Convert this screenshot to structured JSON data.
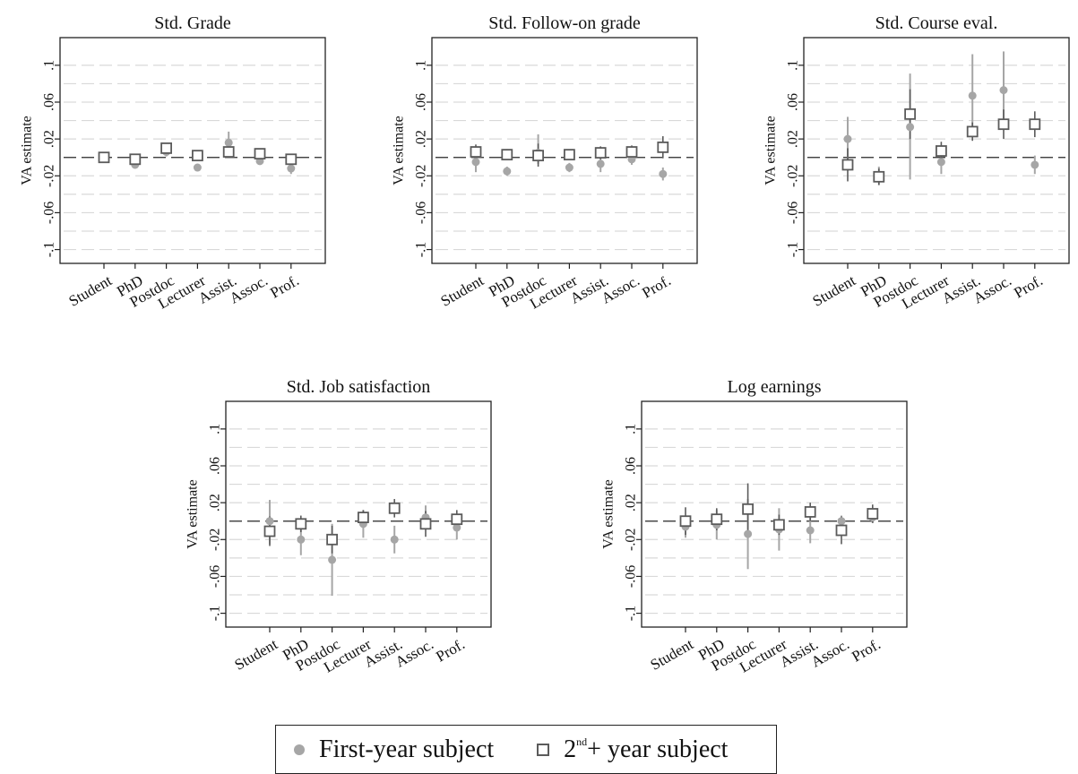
{
  "ylabel": "VA estimate",
  "yticks": [
    -0.1,
    -0.06,
    -0.02,
    0.02,
    0.06,
    0.1
  ],
  "ytick_labels": [
    "-.1",
    "-.06",
    "-.02",
    ".02",
    ".06",
    ".1"
  ],
  "legend": {
    "first_label": "First-year subject",
    "second_prefix": "2",
    "second_sup": "nd",
    "second_suffix": "+ year subject"
  },
  "colors": {
    "first": "#a6a6a6",
    "second": "#5b5b5b",
    "grid": "#d9d9d9"
  },
  "chart_data": [
    {
      "type": "scatter",
      "title": "Std. Grade",
      "ylabel": "VA estimate",
      "ylim": [
        -0.115,
        0.13
      ],
      "categories": [
        "Student",
        "PhD",
        "Postdoc",
        "Lecturer",
        "Assist.",
        "Assoc.",
        "Prof."
      ],
      "series": [
        {
          "name": "First-year subject",
          "values": [
            0.0,
            -0.008,
            0.006,
            -0.011,
            0.016,
            -0.004,
            -0.012
          ],
          "ci_low": [
            -0.004,
            -0.012,
            0.001,
            -0.015,
            0.005,
            -0.008,
            -0.018
          ],
          "ci_high": [
            0.004,
            -0.004,
            0.011,
            -0.007,
            0.028,
            0.0,
            -0.006
          ]
        },
        {
          "name": "2nd+ year subject",
          "values": [
            0.0,
            -0.002,
            0.01,
            0.002,
            0.006,
            0.004,
            -0.002
          ],
          "ci_low": [
            -0.002,
            -0.005,
            0.006,
            -0.002,
            0.002,
            0.0,
            -0.006
          ],
          "ci_high": [
            0.002,
            0.001,
            0.014,
            0.006,
            0.01,
            0.008,
            0.002
          ]
        }
      ]
    },
    {
      "type": "scatter",
      "title": "Std. Follow-on grade",
      "ylabel": "VA estimate",
      "ylim": [
        -0.115,
        0.13
      ],
      "categories": [
        "Student",
        "PhD",
        "Postdoc",
        "Lecturer",
        "Assist.",
        "Assoc.",
        "Prof."
      ],
      "series": [
        {
          "name": "First-year subject",
          "values": [
            -0.005,
            -0.015,
            0.005,
            -0.011,
            -0.007,
            -0.002,
            -0.018
          ],
          "ci_low": [
            -0.016,
            -0.02,
            -0.007,
            -0.016,
            -0.016,
            -0.008,
            -0.025
          ],
          "ci_high": [
            0.006,
            -0.01,
            0.025,
            -0.006,
            0.002,
            0.004,
            -0.011
          ]
        },
        {
          "name": "2nd+ year subject",
          "values": [
            0.006,
            0.003,
            0.002,
            0.003,
            0.005,
            0.006,
            0.011
          ],
          "ci_low": [
            -0.002,
            -0.003,
            -0.01,
            -0.002,
            -0.002,
            -0.001,
            -0.001
          ],
          "ci_high": [
            0.014,
            0.009,
            0.015,
            0.008,
            0.012,
            0.013,
            0.023
          ]
        }
      ]
    },
    {
      "type": "scatter",
      "title": "Std. Course eval.",
      "ylabel": "VA estimate",
      "ylim": [
        -0.115,
        0.13
      ],
      "categories": [
        "Student",
        "PhD",
        "Postdoc",
        "Lecturer",
        "Assist.",
        "Assoc.",
        "Prof."
      ],
      "series": [
        {
          "name": "First-year subject",
          "values": [
            0.02,
            -0.02,
            0.033,
            -0.005,
            0.067,
            0.073,
            -0.008
          ],
          "ci_low": [
            -0.004,
            -0.03,
            -0.024,
            -0.018,
            0.022,
            0.032,
            -0.018
          ],
          "ci_high": [
            0.044,
            -0.01,
            0.091,
            0.008,
            0.112,
            0.115,
            0.002
          ]
        },
        {
          "name": "2nd+ year subject",
          "values": [
            -0.008,
            -0.021,
            0.047,
            0.007,
            0.028,
            0.036,
            0.036
          ],
          "ci_low": [
            -0.026,
            -0.03,
            0.02,
            -0.003,
            0.018,
            0.02,
            0.022
          ],
          "ci_high": [
            0.01,
            -0.012,
            0.074,
            0.017,
            0.038,
            0.052,
            0.05
          ]
        }
      ]
    },
    {
      "type": "scatter",
      "title": "Std. Job satisfaction",
      "ylabel": "VA estimate",
      "ylim": [
        -0.115,
        0.13
      ],
      "categories": [
        "Student",
        "PhD",
        "Postdoc",
        "Lecturer",
        "Assist.",
        "Assoc.",
        "Prof."
      ],
      "series": [
        {
          "name": "First-year subject",
          "values": [
            0.0,
            -0.02,
            -0.042,
            -0.003,
            -0.02,
            0.004,
            -0.007
          ],
          "ci_low": [
            -0.025,
            -0.037,
            -0.081,
            -0.018,
            -0.035,
            -0.009,
            -0.02
          ],
          "ci_high": [
            0.023,
            -0.003,
            -0.003,
            0.012,
            -0.005,
            0.017,
            0.006
          ]
        },
        {
          "name": "2nd+ year subject",
          "values": [
            -0.011,
            -0.003,
            -0.02,
            0.004,
            0.014,
            -0.003,
            0.002
          ],
          "ci_low": [
            -0.027,
            -0.012,
            -0.035,
            -0.004,
            0.004,
            -0.017,
            -0.008
          ],
          "ci_high": [
            0.005,
            0.006,
            -0.005,
            0.012,
            0.024,
            0.011,
            0.012
          ]
        }
      ]
    },
    {
      "type": "scatter",
      "title": "Log earnings",
      "ylabel": "VA estimate",
      "ylim": [
        -0.115,
        0.13
      ],
      "categories": [
        "Student",
        "PhD",
        "Postdoc",
        "Lecturer",
        "Assist.",
        "Assoc.",
        "Prof."
      ],
      "series": [
        {
          "name": "First-year subject",
          "values": [
            -0.006,
            -0.004,
            -0.014,
            -0.009,
            -0.01,
            0.0,
            0.004
          ],
          "ci_low": [
            -0.018,
            -0.02,
            -0.052,
            -0.032,
            -0.024,
            -0.006,
            -0.002
          ],
          "ci_high": [
            0.006,
            0.012,
            0.024,
            0.014,
            0.004,
            0.006,
            0.01
          ]
        },
        {
          "name": "2nd+ year subject",
          "values": [
            0.0,
            0.002,
            0.013,
            -0.004,
            0.01,
            -0.01,
            0.008
          ],
          "ci_low": [
            -0.015,
            -0.01,
            -0.015,
            -0.015,
            0.0,
            -0.025,
            -0.002
          ],
          "ci_high": [
            0.015,
            0.014,
            0.041,
            0.007,
            0.02,
            0.005,
            0.018
          ]
        }
      ]
    }
  ]
}
